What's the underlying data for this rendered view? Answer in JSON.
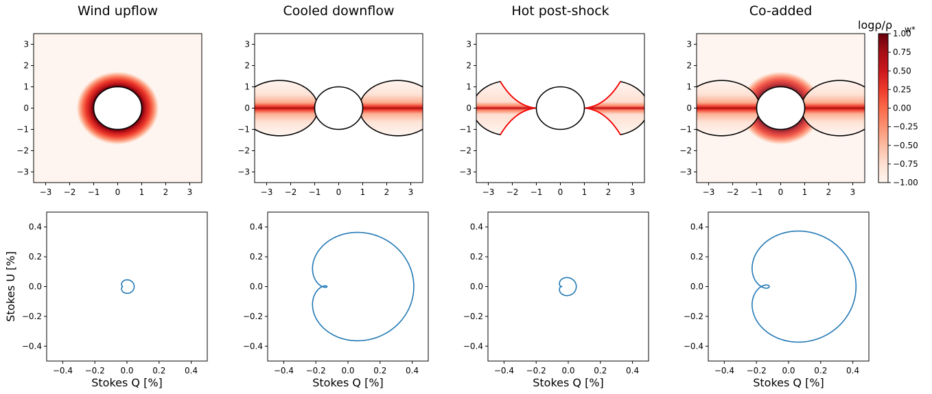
{
  "figure": {
    "colorbar_label": "logρ/ρ",
    "colorbar_label_sub": "w*",
    "colorbar_ticks": [
      "1.00",
      "0.75",
      "0.50",
      "0.25",
      "0.00",
      "−0.25",
      "−0.50",
      "−0.75",
      "−1.00"
    ],
    "top_ticks": [
      "−3",
      "−2",
      "−1",
      "0",
      "1",
      "2",
      "3"
    ],
    "bottom_x_ticks": [
      "−0.4",
      "−0.2",
      "0.0",
      "0.2",
      "0.4"
    ],
    "bottom_y_ticks": [
      "0.4",
      "0.2",
      "0.0",
      "−0.2",
      "−0.4"
    ],
    "colors": {
      "curve": "#1f77b4",
      "shock_edge": "#ff0000",
      "colormap": "Reds"
    }
  },
  "chart_data": [
    {
      "type": "heatmap",
      "title": "Wind upflow",
      "xlim": [
        -3.5,
        3.5
      ],
      "ylim": [
        -3.5,
        3.5
      ],
      "star_radius": 1,
      "description_structure": "spherical wind density around star"
    },
    {
      "type": "heatmap",
      "title": "Cooled downflow",
      "xlim": [
        -3.5,
        3.5
      ],
      "ylim": [
        -3.5,
        3.5
      ],
      "star_radius": 1,
      "lobe_extent_x": 3.5,
      "lobe_max_y": 1.3
    },
    {
      "type": "heatmap",
      "title": "Hot post-shock",
      "xlim": [
        -3.5,
        3.5
      ],
      "ylim": [
        -3.5,
        3.5
      ],
      "star_radius": 1,
      "shock_start_x": 1.0,
      "shock_end_x": 2.5,
      "shock_end_y": 1.25
    },
    {
      "type": "heatmap",
      "title": "Co-added",
      "xlim": [
        -3.5,
        3.5
      ],
      "ylim": [
        -3.5,
        3.5
      ],
      "star_radius": 1,
      "colorbar_range": [
        -1.0,
        1.0
      ]
    },
    {
      "type": "line",
      "xlabel": "Stokes Q [%]",
      "ylabel": "Stokes U [%]",
      "xlim": [
        -0.5,
        0.5
      ],
      "ylim": [
        -0.5,
        0.5
      ],
      "series": [
        {
          "A": 0.035,
          "B": 0.035,
          "Q0": 0.01,
          "U0": 0.0
        }
      ]
    },
    {
      "type": "line",
      "xlabel": "Stokes Q [%]",
      "xlim": [
        -0.5,
        0.5
      ],
      "ylim": [
        -0.5,
        0.5
      ],
      "series": [
        {
          "A": 0.27,
          "B": 0.3,
          "Q0": 0.11,
          "U0": 0.0
        }
      ]
    },
    {
      "type": "line",
      "xlabel": "Stokes Q [%]",
      "xlim": [
        -0.5,
        0.5
      ],
      "ylim": [
        -0.5,
        0.5
      ],
      "series": [
        {
          "A": 0.045,
          "B": 0.05,
          "Q0": 0.0,
          "U0": 0.0
        }
      ]
    },
    {
      "type": "line",
      "xlabel": "Stokes Q [%]",
      "xlim": [
        -0.5,
        0.5
      ],
      "ylim": [
        -0.5,
        0.5
      ],
      "series": [
        {
          "A": 0.27,
          "B": 0.32,
          "Q0": 0.1,
          "U0": 0.0
        }
      ]
    }
  ]
}
